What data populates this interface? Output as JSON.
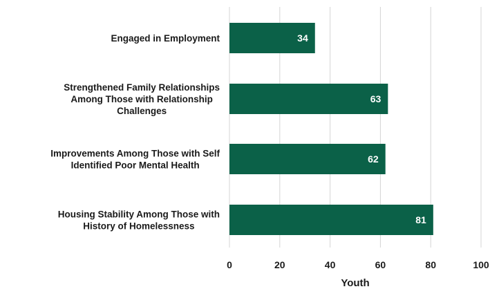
{
  "chart_data": {
    "type": "bar",
    "orientation": "horizontal",
    "categories": [
      [
        "Engaged in Employment"
      ],
      [
        "Strengthened Family Relationships",
        "Among Those with Relationship",
        "Challenges"
      ],
      [
        "Improvements Among Those with Self",
        "Identified Poor Mental Health"
      ],
      [
        "Housing Stability Among Those with",
        "History of Homelessness"
      ]
    ],
    "values": [
      34,
      63,
      62,
      81
    ],
    "data_labels": [
      "34",
      "63",
      "62",
      "81"
    ],
    "xlabel": "Youth",
    "ylabel": "",
    "xlim": [
      0,
      100
    ],
    "x_ticks": [
      0,
      20,
      40,
      60,
      80,
      100
    ],
    "grid": "vertical",
    "legend": "none",
    "colors": {
      "bar": "#0b6148",
      "grid": "#d4d4d4",
      "text": "#1a1a1a",
      "data_label": "#ffffff"
    }
  }
}
